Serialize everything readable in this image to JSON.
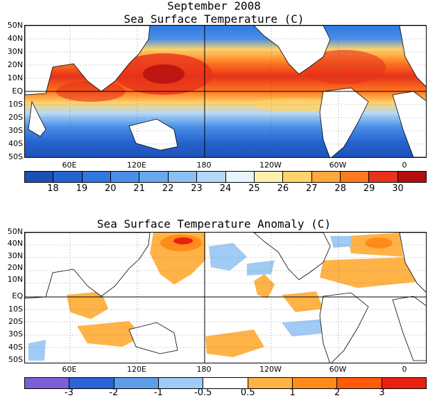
{
  "panel1": {
    "title_line1": "September 2008",
    "title_line2": "Sea Surface Temperature (C)",
    "lat_labels": [
      "50N",
      "40N",
      "30N",
      "20N",
      "10N",
      "EQ",
      "10S",
      "20S",
      "30S",
      "40S",
      "50S"
    ],
    "lon_labels": [
      "60E",
      "120E",
      "180",
      "120W",
      "60W",
      "0"
    ],
    "colorbar_labels": [
      "18",
      "19",
      "20",
      "21",
      "22",
      "23",
      "24",
      "25",
      "26",
      "27",
      "28",
      "29",
      "30"
    ],
    "colorbar_colors": [
      "#1e4fb5",
      "#2563cf",
      "#2f78e0",
      "#4a90e8",
      "#6aa8ee",
      "#8cc0f2",
      "#b4d8f8",
      "#e6f4fb",
      "#fff0b0",
      "#ffd36a",
      "#ffa83c",
      "#ff7a1e",
      "#e8321a",
      "#b40e0e"
    ]
  },
  "panel2": {
    "title": "Sea Surface Temperature Anomaly (C)",
    "lat_labels": [
      "50N",
      "40N",
      "30N",
      "20N",
      "10N",
      "EQ",
      "10S",
      "20S",
      "30S",
      "40S",
      "50S"
    ],
    "lon_labels": [
      "60E",
      "120E",
      "180",
      "120W",
      "60W",
      "0"
    ],
    "colorbar_labels": [
      "-3",
      "-2",
      "-1",
      "-0.5",
      "0.5",
      "1",
      "2",
      "3"
    ],
    "colorbar_colors": [
      "#7b5fd6",
      "#2a63d6",
      "#5e9de8",
      "#9fcbf4",
      "#ffffff",
      "#ffb347",
      "#ff8c1a",
      "#ff5a0a",
      "#e8210e"
    ]
  },
  "colors": {
    "ocean_warm": "#e8321a",
    "ocean_cold": "#2563cf",
    "land": "#ffffff",
    "anomaly_pos": "#ffb347",
    "anomaly_neg": "#8cc0f2"
  }
}
